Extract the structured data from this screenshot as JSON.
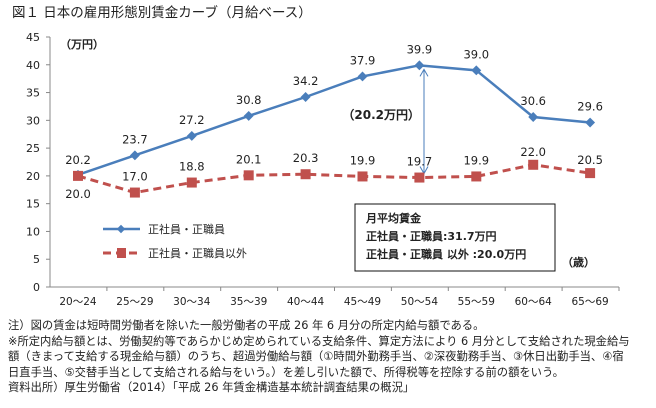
{
  "chart_data": {
    "type": "line",
    "title": "図１ 日本の雇用形態別賃金カーブ（月給ベース）",
    "ylabel": "（万円）",
    "xlabel": "（歳）",
    "ylim": [
      0,
      45
    ],
    "yticks": [
      0,
      5,
      10,
      15,
      20,
      25,
      30,
      35,
      40,
      45
    ],
    "categories": [
      "20～24",
      "25～29",
      "30～34",
      "35～39",
      "40～44",
      "45～49",
      "50～54",
      "55～59",
      "60～64",
      "65～69"
    ],
    "series": [
      {
        "name": "正社員・正職員",
        "color": "#4a7ebb",
        "style": "solid-diamond",
        "values": [
          20.2,
          23.7,
          27.2,
          30.8,
          34.2,
          37.9,
          39.9,
          39.0,
          30.6,
          29.6
        ],
        "labels": [
          "20.2",
          "23.7",
          "27.2",
          "30.8",
          "34.2",
          "37.9",
          "39.9",
          "39.0",
          "30.6",
          "29.6"
        ]
      },
      {
        "name": "正社員・正職員以外",
        "color": "#c0504d",
        "style": "dashed-square",
        "values": [
          20.0,
          17.0,
          18.8,
          20.1,
          20.3,
          19.9,
          19.7,
          19.9,
          22.0,
          20.5
        ],
        "labels": [
          "20.0",
          "17.0",
          "18.8",
          "20.1",
          "20.3",
          "19.9",
          "19.7",
          "19.9",
          "22.0",
          "20.5"
        ]
      }
    ],
    "annotation": {
      "text": "（20.2万円）",
      "category": "50～54"
    },
    "infobox": {
      "title": "月平均賃金",
      "line1": "正社員・正職員:31.7万円",
      "line2": "正社員・正職員 以外 :20.0万円"
    },
    "grid": false,
    "legend": "center-left"
  },
  "notes": [
    "注）図の賃金は短時間労働者を除いた一般労働者の平成 26 年 6 月分の所定内給与額である。",
    "※所定内給与額とは、労働契約等であらかじめ定められている支給条件、算定方法により 6 月分として支給された現金給与",
    "額（きまって支給する現金給与額）のうち、超過労働給与額（①時間外勤務手当、②深夜勤務手当、③休日出勤手当、④宿",
    "日直手当、⑤交替手当として支給される給与をいう。）を差し引いた額で、所得税等を控除する前の額をいう。",
    "資料出所）厚生労働省（2014）「平成 26 年賃金構造基本統計調査結果の概況」"
  ]
}
